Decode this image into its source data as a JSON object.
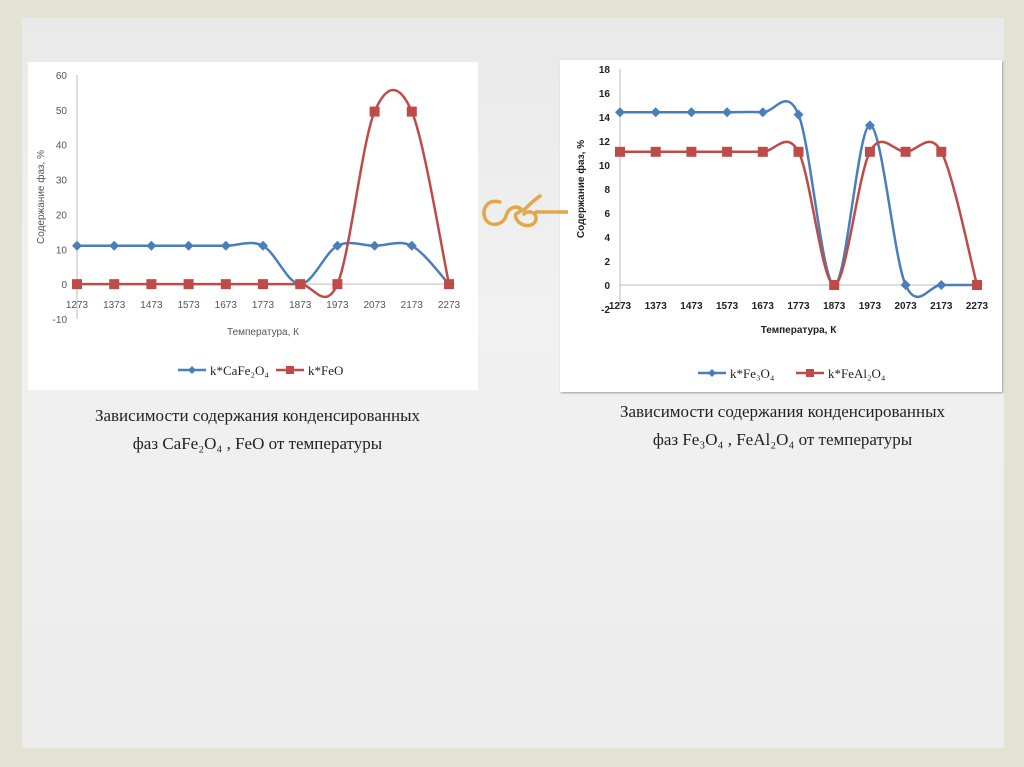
{
  "chart_data": [
    {
      "type": "line",
      "title": "",
      "xlabel": "Температура, К",
      "ylabel": "Содержание фаз, %",
      "categories": [
        "1273",
        "1373",
        "1473",
        "1573",
        "1673",
        "1773",
        "1873",
        "1973",
        "2073",
        "2173",
        "2273"
      ],
      "ylim": [
        -10,
        60
      ],
      "yticks": [
        "60",
        "50",
        "40",
        "30",
        "20",
        "10",
        "0",
        "-10"
      ],
      "smooth": true,
      "legend_position": "bottom",
      "series": [
        {
          "name": "k*CaFe₂O₄",
          "color": "#4a7ebb",
          "marker": "diamond",
          "values": [
            11,
            11,
            11,
            11,
            11,
            11,
            0,
            11,
            11,
            11,
            0
          ]
        },
        {
          "name": "k*FeO",
          "color": "#be4b48",
          "marker": "square",
          "values": [
            0,
            0,
            0,
            0,
            0,
            0,
            0,
            0,
            49.5,
            49.5,
            0
          ]
        }
      ]
    },
    {
      "type": "line",
      "title": "",
      "xlabel": "Температура, К",
      "ylabel": "Содержание фаз, %",
      "categories": [
        "1273",
        "1373",
        "1473",
        "1573",
        "1673",
        "1773",
        "1873",
        "1973",
        "2073",
        "2173",
        "2273"
      ],
      "ylim": [
        -2,
        18
      ],
      "yticks": [
        "18",
        "16",
        "14",
        "12",
        "10",
        "8",
        "6",
        "4",
        "2",
        "0",
        "-2"
      ],
      "smooth": true,
      "legend_position": "bottom",
      "series": [
        {
          "name": "k*Fe₃O₄",
          "color": "#4a7ebb",
          "marker": "diamond",
          "values": [
            14.4,
            14.4,
            14.4,
            14.4,
            14.4,
            14.2,
            0,
            13.3,
            0,
            0,
            0
          ]
        },
        {
          "name": "k*FeAl₂O₄",
          "color": "#be4b48",
          "marker": "square",
          "values": [
            11.1,
            11.1,
            11.1,
            11.1,
            11.1,
            11.1,
            0,
            11.1,
            11.1,
            11.1,
            0
          ]
        }
      ]
    }
  ],
  "captions": [
    {
      "line1": "Зависимости содержания конденсированных",
      "line2": "фаз CaFe₂O₄ , FeO от температуры"
    },
    {
      "line1": "Зависимости содержания конденсированных",
      "line2": "фаз Fe₃O₄ , FeAl₂O₄ от температуры"
    }
  ],
  "ornament_color": "#e0a84a"
}
